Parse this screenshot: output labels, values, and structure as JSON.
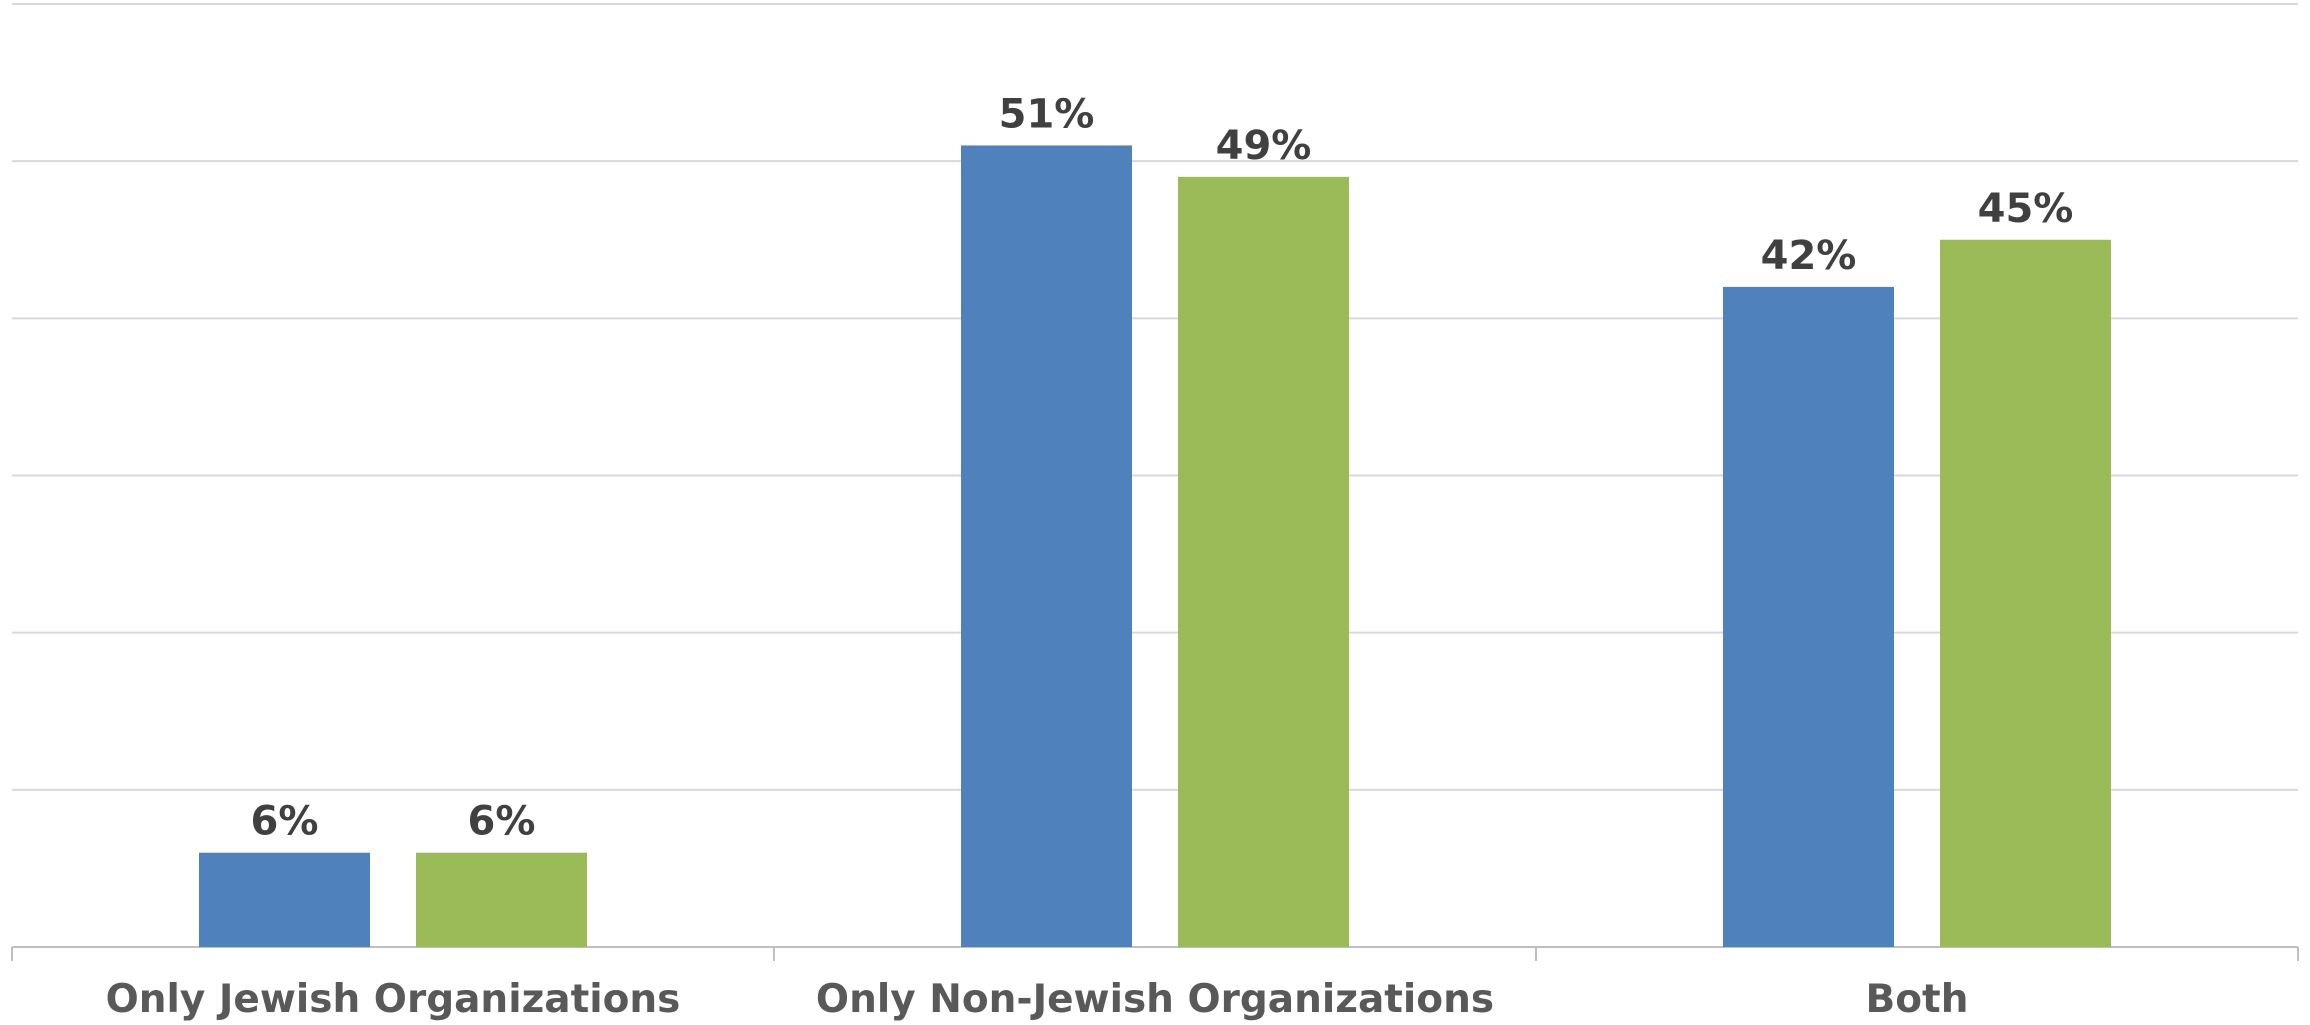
{
  "chart_data": {
    "type": "bar",
    "categories": [
      "Only Jewish Organizations",
      "Only Non-Jewish Organizations",
      "Both"
    ],
    "series": [
      {
        "values": [
          6,
          51,
          42
        ],
        "labels": [
          "6%",
          "51%",
          "42%"
        ],
        "color": "#4F81BD"
      },
      {
        "values": [
          6,
          49,
          45
        ],
        "labels": [
          "6%",
          "49%",
          "45%"
        ],
        "color": "#9BBB59"
      }
    ],
    "ylim": [
      0,
      60
    ],
    "y_gridlines": [
      10,
      20,
      30,
      40,
      50,
      60
    ],
    "grid": true,
    "legend": "none",
    "title": "",
    "xlabel": "",
    "ylabel": ""
  }
}
